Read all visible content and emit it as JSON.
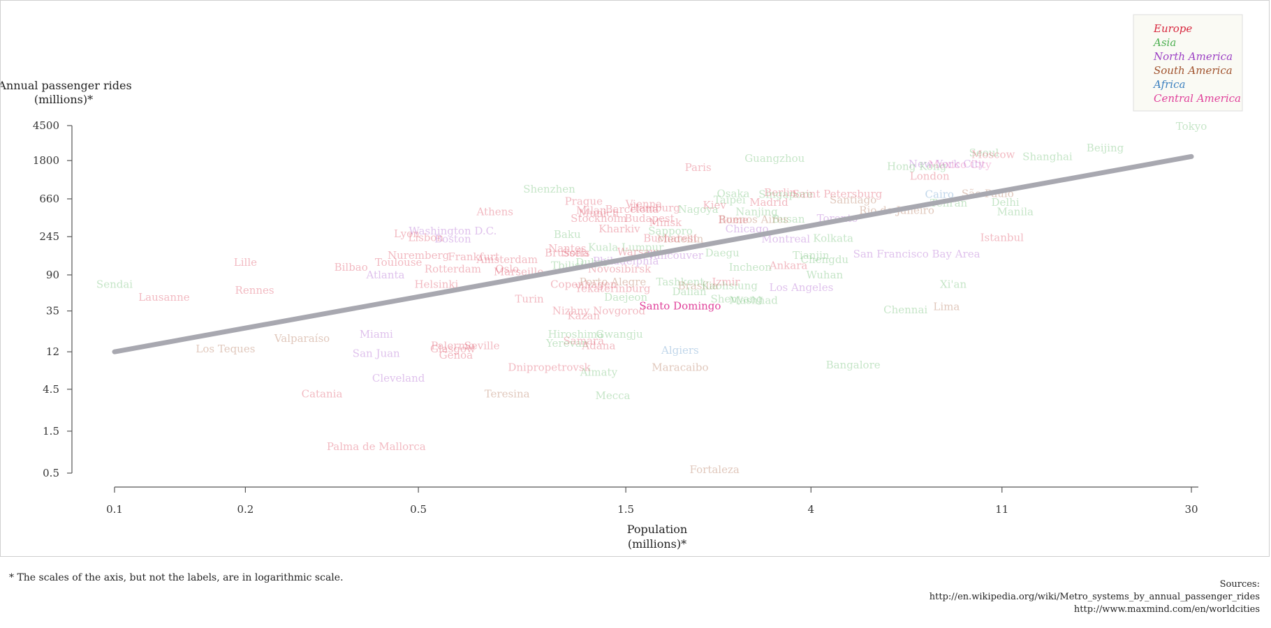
{
  "chart_data": {
    "type": "scatter",
    "xlabel": [
      "Population",
      "(millions)*"
    ],
    "ylabel": [
      "Annual passenger rides",
      "(millions)*"
    ],
    "x_scale": "log",
    "y_scale": "log",
    "x_ticks": [
      0.1,
      0.2,
      0.5,
      1.5,
      4,
      11,
      30
    ],
    "y_ticks": [
      0.5,
      1.5,
      4.5,
      12,
      35,
      90,
      245,
      660,
      1800,
      4500
    ],
    "xlim": [
      0.1,
      30
    ],
    "ylim": [
      0.5,
      4500
    ],
    "grid": false,
    "legend_position": "top-right",
    "legend": [
      {
        "name": "Europe",
        "color": "#d7263d"
      },
      {
        "name": "Asia",
        "color": "#4caf50"
      },
      {
        "name": "North America",
        "color": "#9b3fc4"
      },
      {
        "name": "South America",
        "color": "#a0522d"
      },
      {
        "name": "Africa",
        "color": "#3a7fbf"
      },
      {
        "name": "Central America",
        "color": "#e0409a"
      }
    ],
    "trend_line": {
      "x": [
        0.1,
        30
      ],
      "y": [
        12,
        2000
      ],
      "color": "#a8a8b0"
    },
    "highlight": "Santo Domingo",
    "points": [
      {
        "name": "Tokyo",
        "x": 30,
        "y": 4400,
        "region": "Asia"
      },
      {
        "name": "Beijing",
        "x": 19,
        "y": 2500,
        "region": "Asia"
      },
      {
        "name": "Seoul",
        "x": 10,
        "y": 2200,
        "region": "Asia"
      },
      {
        "name": "Moscow",
        "x": 10.5,
        "y": 2100,
        "region": "Europe"
      },
      {
        "name": "Shanghai",
        "x": 14,
        "y": 2000,
        "region": "Asia"
      },
      {
        "name": "Guangzhou",
        "x": 3.3,
        "y": 1900,
        "region": "Asia"
      },
      {
        "name": "New York City",
        "x": 8.2,
        "y": 1650,
        "region": "North America"
      },
      {
        "name": "Mexico City",
        "x": 8.8,
        "y": 1620,
        "region": "Central America"
      },
      {
        "name": "Hong Kong",
        "x": 7,
        "y": 1550,
        "region": "Asia"
      },
      {
        "name": "London",
        "x": 7.5,
        "y": 1200,
        "region": "Europe"
      },
      {
        "name": "Paris",
        "x": 2.2,
        "y": 1500,
        "region": "Europe"
      },
      {
        "name": "Shenzhen",
        "x": 1.0,
        "y": 850,
        "region": "Asia"
      },
      {
        "name": "Osaka",
        "x": 2.65,
        "y": 760,
        "region": "Asia"
      },
      {
        "name": "Berlin",
        "x": 3.4,
        "y": 780,
        "region": "Europe"
      },
      {
        "name": "Singapore",
        "x": 3.5,
        "y": 740,
        "region": "Asia"
      },
      {
        "name": "Saint Petersburg",
        "x": 4.6,
        "y": 750,
        "region": "Europe"
      },
      {
        "name": "Cairo",
        "x": 7.9,
        "y": 740,
        "region": "Africa"
      },
      {
        "name": "São Paulo",
        "x": 10.2,
        "y": 760,
        "region": "South America"
      },
      {
        "name": "Santiago",
        "x": 5.0,
        "y": 640,
        "region": "South America"
      },
      {
        "name": "Prague",
        "x": 1.2,
        "y": 620,
        "region": "Europe"
      },
      {
        "name": "Taipei",
        "x": 2.6,
        "y": 640,
        "region": "Asia"
      },
      {
        "name": "Madrid",
        "x": 3.2,
        "y": 600,
        "region": "Europe"
      },
      {
        "name": "Delhi",
        "x": 11.2,
        "y": 600,
        "region": "Asia"
      },
      {
        "name": "Vienna",
        "x": 1.65,
        "y": 575,
        "region": "Europe"
      },
      {
        "name": "Tehran",
        "x": 8.3,
        "y": 590,
        "region": "Asia"
      },
      {
        "name": "Kiev",
        "x": 2.4,
        "y": 560,
        "region": "Europe"
      },
      {
        "name": "Hamburg",
        "x": 1.75,
        "y": 520,
        "region": "Europe"
      },
      {
        "name": "Nagoya",
        "x": 2.2,
        "y": 500,
        "region": "Asia"
      },
      {
        "name": "Milan",
        "x": 1.25,
        "y": 490,
        "region": "Europe"
      },
      {
        "name": "Barcelona",
        "x": 1.55,
        "y": 500,
        "region": "Europe"
      },
      {
        "name": "Athens",
        "x": 0.75,
        "y": 470,
        "region": "Europe"
      },
      {
        "name": "Munich",
        "x": 1.3,
        "y": 455,
        "region": "Europe"
      },
      {
        "name": "Nanjing",
        "x": 3.0,
        "y": 470,
        "region": "Asia"
      },
      {
        "name": "Rio de Janeiro",
        "x": 6.3,
        "y": 490,
        "region": "South America"
      },
      {
        "name": "Manila",
        "x": 11.8,
        "y": 470,
        "region": "Asia"
      },
      {
        "name": "Stockholm",
        "x": 1.3,
        "y": 395,
        "region": "Europe"
      },
      {
        "name": "Budapest",
        "x": 1.7,
        "y": 395,
        "region": "Europe"
      },
      {
        "name": "Busan",
        "x": 3.55,
        "y": 390,
        "region": "Asia"
      },
      {
        "name": "Toronto",
        "x": 4.6,
        "y": 395,
        "region": "North America"
      },
      {
        "name": "Buenos Aires",
        "x": 2.95,
        "y": 385,
        "region": "South America"
      },
      {
        "name": "Rome",
        "x": 2.65,
        "y": 380,
        "region": "Europe"
      },
      {
        "name": "Minsk",
        "x": 1.85,
        "y": 355,
        "region": "Europe"
      },
      {
        "name": "Kharkiv",
        "x": 1.45,
        "y": 300,
        "region": "Europe"
      },
      {
        "name": "Chicago",
        "x": 2.85,
        "y": 300,
        "region": "North America"
      },
      {
        "name": "Sapporo",
        "x": 1.9,
        "y": 285,
        "region": "Asia"
      },
      {
        "name": "Washington D.C.",
        "x": 0.6,
        "y": 285,
        "region": "North America"
      },
      {
        "name": "Lyon",
        "x": 0.47,
        "y": 265,
        "region": "Europe"
      },
      {
        "name": "Baku",
        "x": 1.1,
        "y": 260,
        "region": "Asia"
      },
      {
        "name": "Lisbon",
        "x": 0.52,
        "y": 240,
        "region": "Europe"
      },
      {
        "name": "Boston",
        "x": 0.6,
        "y": 230,
        "region": "North America"
      },
      {
        "name": "Medellín",
        "x": 2.0,
        "y": 230,
        "region": "South America"
      },
      {
        "name": "Bucharest",
        "x": 1.9,
        "y": 235,
        "region": "Europe"
      },
      {
        "name": "Montreal",
        "x": 3.5,
        "y": 230,
        "region": "North America"
      },
      {
        "name": "Kolkata",
        "x": 4.5,
        "y": 235,
        "region": "Asia"
      },
      {
        "name": "Istanbul",
        "x": 11.0,
        "y": 240,
        "region": "Europe"
      },
      {
        "name": "Nantes",
        "x": 1.1,
        "y": 180,
        "region": "Europe"
      },
      {
        "name": "Kuala Lumpur",
        "x": 1.5,
        "y": 185,
        "region": "Asia"
      },
      {
        "name": "Brussels",
        "x": 1.1,
        "y": 160,
        "region": "Europe"
      },
      {
        "name": "Sofia",
        "x": 1.15,
        "y": 160,
        "region": "Europe"
      },
      {
        "name": "Warsaw",
        "x": 1.6,
        "y": 165,
        "region": "Europe"
      },
      {
        "name": "Vancouver",
        "x": 1.95,
        "y": 150,
        "region": "North America"
      },
      {
        "name": "Daegu",
        "x": 2.5,
        "y": 160,
        "region": "Asia"
      },
      {
        "name": "San Francisco Bay Area",
        "x": 7.0,
        "y": 155,
        "region": "North America"
      },
      {
        "name": "Tianjin",
        "x": 4.0,
        "y": 150,
        "region": "Asia"
      },
      {
        "name": "Chengdu",
        "x": 4.3,
        "y": 135,
        "region": "Asia"
      },
      {
        "name": "Nuremberg",
        "x": 0.5,
        "y": 150,
        "region": "Europe"
      },
      {
        "name": "Frankfurt",
        "x": 0.67,
        "y": 145,
        "region": "Europe"
      },
      {
        "name": "Amsterdam",
        "x": 0.8,
        "y": 135,
        "region": "Europe"
      },
      {
        "name": "Lille",
        "x": 0.2,
        "y": 125,
        "region": "Europe"
      },
      {
        "name": "Toulouse",
        "x": 0.45,
        "y": 125,
        "region": "Europe"
      },
      {
        "name": "Bilbao",
        "x": 0.35,
        "y": 110,
        "region": "Europe"
      },
      {
        "name": "Tbilisi",
        "x": 1.1,
        "y": 115,
        "region": "Asia"
      },
      {
        "name": "Dubai",
        "x": 1.25,
        "y": 125,
        "region": "Asia"
      },
      {
        "name": "Incheon",
        "x": 2.9,
        "y": 110,
        "region": "Asia"
      },
      {
        "name": "Ankara",
        "x": 3.55,
        "y": 115,
        "region": "Europe"
      },
      {
        "name": "Philadelphia",
        "x": 1.5,
        "y": 130,
        "region": "North America"
      },
      {
        "name": "Novosibirsk",
        "x": 1.45,
        "y": 105,
        "region": "Europe"
      },
      {
        "name": "Rotterdam",
        "x": 0.6,
        "y": 105,
        "region": "Europe"
      },
      {
        "name": "Oslo",
        "x": 0.8,
        "y": 105,
        "region": "Europe"
      },
      {
        "name": "Marseille",
        "x": 0.85,
        "y": 98,
        "region": "Europe"
      },
      {
        "name": "Atlanta",
        "x": 0.42,
        "y": 90,
        "region": "North America"
      },
      {
        "name": "Wuhan",
        "x": 4.3,
        "y": 90,
        "region": "Asia"
      },
      {
        "name": "Sendai",
        "x": 0.1,
        "y": 70,
        "region": "Asia"
      },
      {
        "name": "Helsinki",
        "x": 0.55,
        "y": 70,
        "region": "Europe"
      },
      {
        "name": "Copenhagen",
        "x": 1.2,
        "y": 70,
        "region": "Europe"
      },
      {
        "name": "Porto Alegre",
        "x": 1.4,
        "y": 75,
        "region": "South America"
      },
      {
        "name": "Tashkent",
        "x": 2.0,
        "y": 75,
        "region": "Asia"
      },
      {
        "name": "Izmir",
        "x": 2.55,
        "y": 75,
        "region": "Europe"
      },
      {
        "name": "Brasília",
        "x": 2.2,
        "y": 68,
        "region": "South America"
      },
      {
        "name": "Kaohsiung",
        "x": 2.6,
        "y": 68,
        "region": "Asia"
      },
      {
        "name": "Los Angeles",
        "x": 3.8,
        "y": 65,
        "region": "North America"
      },
      {
        "name": "Xi'an",
        "x": 8.5,
        "y": 70,
        "region": "Asia"
      },
      {
        "name": "Rennes",
        "x": 0.21,
        "y": 60,
        "region": "Europe"
      },
      {
        "name": "Yekaterinburg",
        "x": 1.4,
        "y": 63,
        "region": "Europe"
      },
      {
        "name": "Dalian",
        "x": 2.1,
        "y": 58,
        "region": "Asia"
      },
      {
        "name": "Lausanne",
        "x": 0.13,
        "y": 50,
        "region": "Europe"
      },
      {
        "name": "Turin",
        "x": 0.9,
        "y": 48,
        "region": "Europe"
      },
      {
        "name": "Daejeon",
        "x": 1.5,
        "y": 50,
        "region": "Asia"
      },
      {
        "name": "Mashhad",
        "x": 2.95,
        "y": 46,
        "region": "Asia"
      },
      {
        "name": "Shenyang",
        "x": 2.7,
        "y": 48,
        "region": "Asia"
      },
      {
        "name": "Santo Domingo",
        "x": 2.0,
        "y": 40,
        "region": "Central America"
      },
      {
        "name": "Chennai",
        "x": 6.6,
        "y": 36,
        "region": "Asia"
      },
      {
        "name": "Lima",
        "x": 8.2,
        "y": 39,
        "region": "South America"
      },
      {
        "name": "Nizhny Novgorod",
        "x": 1.3,
        "y": 35,
        "region": "Europe"
      },
      {
        "name": "Kazan",
        "x": 1.2,
        "y": 31,
        "region": "Europe"
      },
      {
        "name": "Valparaíso",
        "x": 0.27,
        "y": 17,
        "region": "South America"
      },
      {
        "name": "Miami",
        "x": 0.4,
        "y": 19,
        "region": "North America"
      },
      {
        "name": "Hiroshima",
        "x": 1.15,
        "y": 19,
        "region": "Asia"
      },
      {
        "name": "Gwangju",
        "x": 1.45,
        "y": 19,
        "region": "Asia"
      },
      {
        "name": "Samara",
        "x": 1.2,
        "y": 16,
        "region": "Europe"
      },
      {
        "name": "Yerevan",
        "x": 1.1,
        "y": 15,
        "region": "Asia"
      },
      {
        "name": "Adana",
        "x": 1.3,
        "y": 14,
        "region": "Europe"
      },
      {
        "name": "Palermo",
        "x": 0.6,
        "y": 14,
        "region": "Europe"
      },
      {
        "name": "Seville",
        "x": 0.7,
        "y": 14,
        "region": "Europe"
      },
      {
        "name": "Glasgow",
        "x": 0.6,
        "y": 13,
        "region": "Europe"
      },
      {
        "name": "Genoa",
        "x": 0.61,
        "y": 11,
        "region": "Europe"
      },
      {
        "name": "Los Teques",
        "x": 0.18,
        "y": 13,
        "region": "South America"
      },
      {
        "name": "San Juan",
        "x": 0.4,
        "y": 11.5,
        "region": "North America"
      },
      {
        "name": "Algiers",
        "x": 2.0,
        "y": 12.5,
        "region": "Africa"
      },
      {
        "name": "Bangalore",
        "x": 5.0,
        "y": 8.5,
        "region": "Asia"
      },
      {
        "name": "Dnipropetrovsk",
        "x": 1.0,
        "y": 8,
        "region": "Europe"
      },
      {
        "name": "Maracaibo",
        "x": 2.0,
        "y": 8,
        "region": "South America"
      },
      {
        "name": "Almaty",
        "x": 1.3,
        "y": 7,
        "region": "Asia"
      },
      {
        "name": "Cleveland",
        "x": 0.45,
        "y": 6,
        "region": "North America"
      },
      {
        "name": "Catania",
        "x": 0.3,
        "y": 4,
        "region": "Europe"
      },
      {
        "name": "Teresina",
        "x": 0.8,
        "y": 4,
        "region": "South America"
      },
      {
        "name": "Mecca",
        "x": 1.4,
        "y": 3.8,
        "region": "Asia"
      },
      {
        "name": "Palma de Mallorca",
        "x": 0.4,
        "y": 1,
        "region": "Europe"
      },
      {
        "name": "Fortaleza",
        "x": 2.4,
        "y": 0.55,
        "region": "South America"
      }
    ]
  },
  "footnote": "* The scales of the axis, but not the labels, are in logarithmic scale.",
  "sources": {
    "label": "Sources:",
    "lines": [
      "http://en.wikipedia.org/wiki/Metro_systems_by_annual_passenger_rides",
      "http://www.maxmind.com/en/worldcities"
    ]
  }
}
